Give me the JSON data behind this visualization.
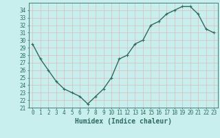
{
  "x": [
    0,
    1,
    2,
    3,
    4,
    5,
    6,
    7,
    8,
    9,
    10,
    11,
    12,
    13,
    14,
    15,
    16,
    17,
    18,
    19,
    20,
    21,
    22,
    23
  ],
  "y": [
    29.5,
    27.5,
    26.0,
    24.5,
    23.5,
    23.0,
    22.5,
    21.5,
    22.5,
    23.5,
    25.0,
    27.5,
    28.0,
    29.5,
    30.0,
    32.0,
    32.5,
    33.5,
    34.0,
    34.5,
    34.5,
    33.5,
    31.5,
    31.0
  ],
  "line_color": "#2d6b5e",
  "marker": "+",
  "marker_size": 3,
  "line_width": 1.0,
  "xlabel": "Humidex (Indice chaleur)",
  "xlim": [
    -0.5,
    23.5
  ],
  "ylim": [
    21,
    35
  ],
  "yticks": [
    21,
    22,
    23,
    24,
    25,
    26,
    27,
    28,
    29,
    30,
    31,
    32,
    33,
    34
  ],
  "xticks": [
    0,
    1,
    2,
    3,
    4,
    5,
    6,
    7,
    8,
    9,
    10,
    11,
    12,
    13,
    14,
    15,
    16,
    17,
    18,
    19,
    20,
    21,
    22,
    23
  ],
  "bg_color": "#c8eeee",
  "grid_color": "#ddbcbc",
  "xlabel_fontsize": 7,
  "tick_fontsize": 5.5,
  "fig_width": 3.2,
  "fig_height": 2.0,
  "dpi": 100
}
